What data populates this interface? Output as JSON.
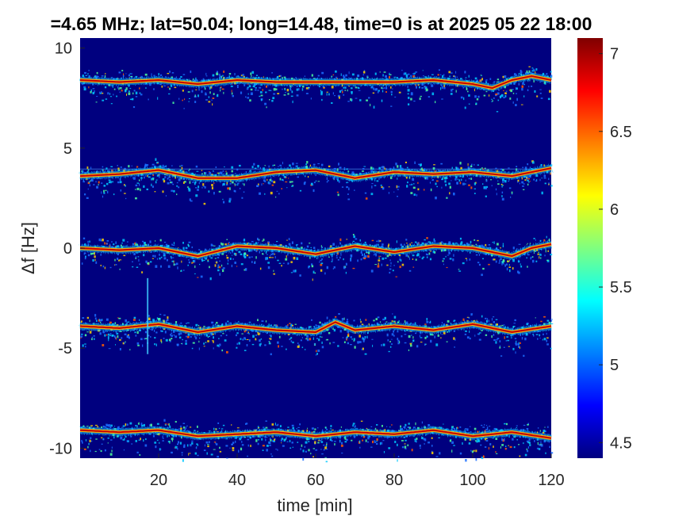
{
  "chart_data": {
    "type": "heatmap",
    "title": "=4.65 MHz;  lat=50.04; long=14.48, time=0 is at 2025 05 22 18:00",
    "xlabel": "time [min]",
    "ylabel": "Δf [Hz]",
    "xlim": [
      0,
      120
    ],
    "ylim": [
      -10.5,
      10.5
    ],
    "xticks": [
      20,
      40,
      60,
      80,
      100,
      120
    ],
    "yticks": [
      -10,
      -5,
      0,
      5,
      10
    ],
    "colorbar": {
      "range": [
        4.4,
        7.1
      ],
      "ticks": [
        4.5,
        5,
        5.5,
        6,
        6.5,
        7
      ],
      "colormap": "jet"
    },
    "background_color": "#00007f",
    "series": [
      {
        "center_hz": 8.4,
        "x": [
          0,
          10,
          20,
          30,
          40,
          50,
          60,
          70,
          80,
          90,
          100,
          105,
          110,
          115,
          120
        ],
        "y": [
          8.4,
          8.3,
          8.4,
          8.2,
          8.4,
          8.3,
          8.3,
          8.3,
          8.3,
          8.4,
          8.2,
          8.0,
          8.4,
          8.6,
          8.4
        ]
      },
      {
        "center_hz": 3.9,
        "x": [
          0,
          10,
          20,
          30,
          40,
          50,
          60,
          70,
          80,
          90,
          100,
          110,
          120
        ],
        "y": [
          3.6,
          3.7,
          3.9,
          3.5,
          3.5,
          3.8,
          3.9,
          3.5,
          3.8,
          3.7,
          3.8,
          3.6,
          4.0
        ]
      },
      {
        "center_hz": 0.0,
        "x": [
          0,
          10,
          20,
          30,
          40,
          50,
          60,
          70,
          80,
          90,
          100,
          110,
          115,
          120
        ],
        "y": [
          0.0,
          -0.1,
          0.0,
          -0.4,
          0.1,
          0.0,
          -0.3,
          0.1,
          -0.2,
          0.1,
          0.0,
          -0.4,
          0.0,
          0.2
        ]
      },
      {
        "center_hz": -3.9,
        "x": [
          0,
          10,
          20,
          30,
          40,
          50,
          60,
          65,
          70,
          80,
          90,
          100,
          110,
          120
        ],
        "y": [
          -3.9,
          -4.0,
          -3.8,
          -4.2,
          -3.9,
          -4.1,
          -4.2,
          -3.7,
          -4.1,
          -3.9,
          -4.1,
          -3.8,
          -4.2,
          -3.9
        ]
      },
      {
        "center_hz": -9.2,
        "x": [
          0,
          10,
          20,
          30,
          40,
          50,
          60,
          70,
          80,
          90,
          100,
          110,
          120
        ],
        "y": [
          -9.1,
          -9.2,
          -9.1,
          -9.4,
          -9.3,
          -9.2,
          -9.4,
          -9.2,
          -9.3,
          -9.1,
          -9.4,
          -9.2,
          -9.5
        ]
      }
    ]
  }
}
